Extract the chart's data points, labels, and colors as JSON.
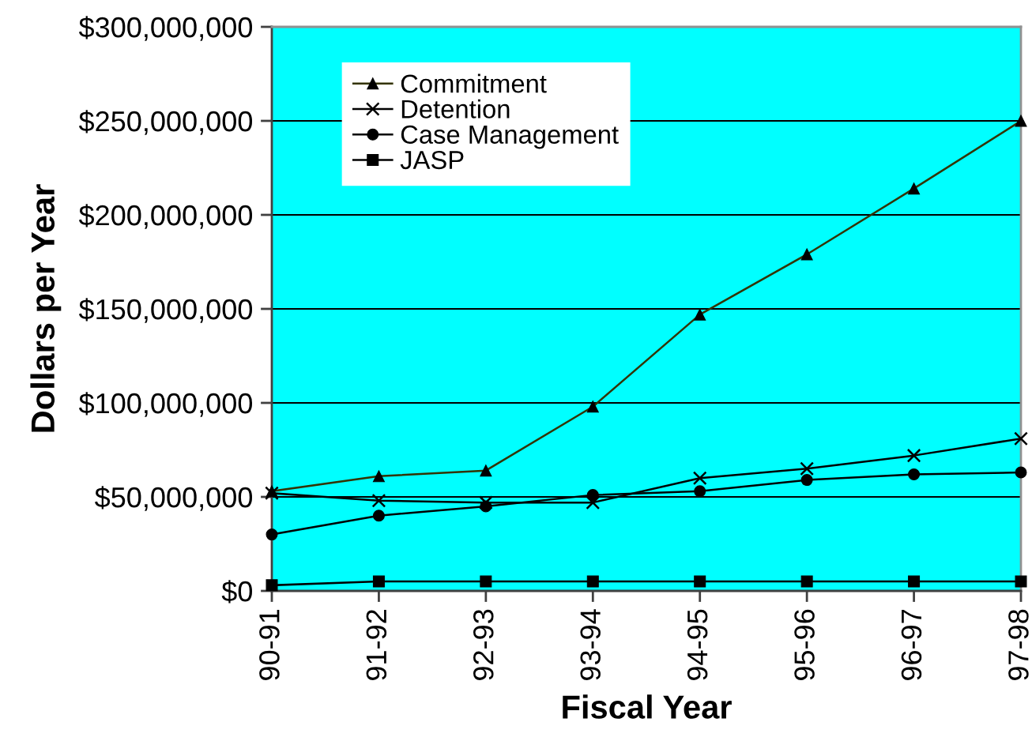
{
  "chart_data": {
    "type": "line",
    "xlabel": "Fiscal Year",
    "ylabel": "Dollars per Year",
    "categories": [
      "90-91",
      "91-92",
      "92-93",
      "93-94",
      "94-95",
      "95-96",
      "96-97",
      "97-98"
    ],
    "series": [
      {
        "name": "Commitment",
        "color": "#333300",
        "marker": "triangle",
        "values": [
          53000000,
          61000000,
          64000000,
          98000000,
          147000000,
          179000000,
          214000000,
          250000000
        ]
      },
      {
        "name": "Detention",
        "color": "#000000",
        "marker": "cross",
        "values": [
          52000000,
          48000000,
          47000000,
          47000000,
          60000000,
          65000000,
          72000000,
          81000000
        ]
      },
      {
        "name": "Case Management",
        "color": "#000000",
        "marker": "circle",
        "values": [
          30000000,
          40000000,
          45000000,
          51000000,
          53000000,
          59000000,
          62000000,
          63000000
        ]
      },
      {
        "name": "JASP",
        "color": "#000000",
        "marker": "square",
        "values": [
          3000000,
          5000000,
          5000000,
          5000000,
          5000000,
          5000000,
          5000000,
          5000000
        ]
      }
    ],
    "ylim": [
      0,
      300000000
    ],
    "yticks": [
      {
        "value": 0,
        "label": "$0"
      },
      {
        "value": 50000000,
        "label": "$50,000,000"
      },
      {
        "value": 100000000,
        "label": "$100,000,000"
      },
      {
        "value": 150000000,
        "label": "$150,000,000"
      },
      {
        "value": 200000000,
        "label": "$200,000,000"
      },
      {
        "value": 250000000,
        "label": "$250,000,000"
      },
      {
        "value": 300000000,
        "label": "$300,000,000"
      }
    ],
    "grid": "y",
    "legend": "top left",
    "line_style": "solid"
  }
}
